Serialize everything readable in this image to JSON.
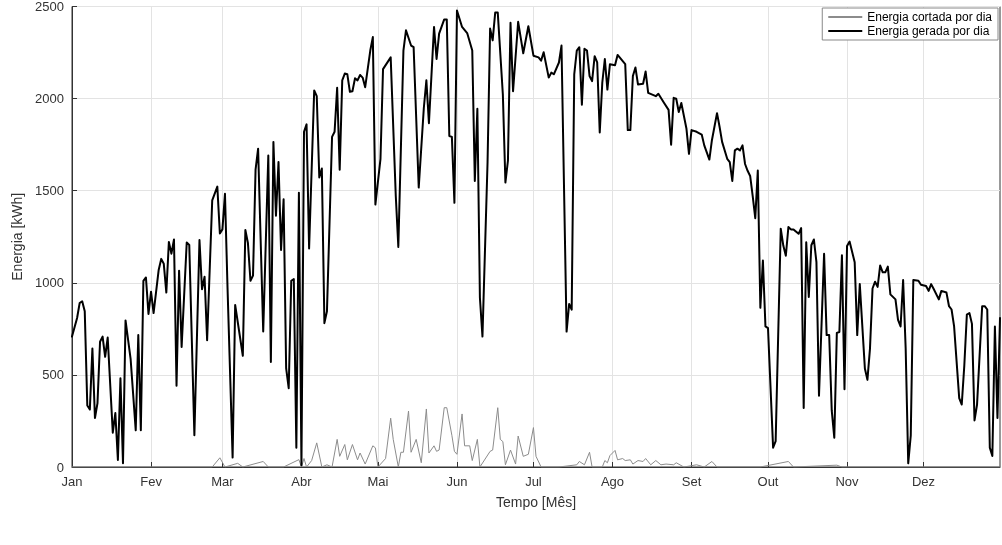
{
  "chart_data": {
    "type": "line",
    "xlabel": "Tempo [Mês]",
    "ylabel": "Energia [kWh]",
    "xlim": [
      "--01-01",
      "--12-31"
    ],
    "ylim": [
      0,
      2500
    ],
    "xticks": [
      {
        "value": "--01-01",
        "label": "Jan"
      },
      {
        "value": "--02-01",
        "label": "Fev"
      },
      {
        "value": "--03-01",
        "label": "Mar"
      },
      {
        "value": "--04-01",
        "label": "Abr"
      },
      {
        "value": "--05-01",
        "label": "Mai"
      },
      {
        "value": "--06-01",
        "label": "Jun"
      },
      {
        "value": "--07-01",
        "label": "Jul"
      },
      {
        "value": "--08-01",
        "label": "Ago"
      },
      {
        "value": "--09-01",
        "label": "Set"
      },
      {
        "value": "--10-01",
        "label": "Out"
      },
      {
        "value": "--11-01",
        "label": "Nov"
      },
      {
        "value": "--12-01",
        "label": "Dez"
      }
    ],
    "yticks": [
      0,
      500,
      1000,
      1500,
      2000,
      2500
    ],
    "grid": true,
    "legend": "top right",
    "marker": "none",
    "line_style": "solid",
    "series": [
      {
        "name": "Energia cortada por dia",
        "color": "#8c8c8c",
        "x": [
          "--01-01",
          "--02-25",
          "--02-28",
          "--03-02",
          "--03-07",
          "--03-09",
          "--03-17",
          "--03-19",
          "--03-25",
          "--03-31",
          "--04-01",
          "--04-02",
          "--04-03",
          "--04-05",
          "--04-07",
          "--04-09",
          "--04-11",
          "--04-13",
          "--04-15",
          "--04-16",
          "--04-18",
          "--04-19",
          "--04-21",
          "--04-23",
          "--04-24",
          "--04-26",
          "--04-29",
          "--04-30",
          "--05-01",
          "--05-04",
          "--05-06",
          "--05-07",
          "--05-09",
          "--05-10",
          "--05-11",
          "--05-13",
          "--05-14",
          "--05-16",
          "--05-18",
          "--05-20",
          "--05-21",
          "--05-23",
          "--05-24",
          "--05-25",
          "--05-27",
          "--05-28",
          "--05-30",
          "--05-31",
          "--06-01",
          "--06-03",
          "--06-04",
          "--06-06",
          "--06-07",
          "--06-09",
          "--06-10",
          "--06-14",
          "--06-15",
          "--06-17",
          "--06-18",
          "--06-19",
          "--06-20",
          "--06-22",
          "--06-24",
          "--06-25",
          "--06-27",
          "--06-29",
          "--07-01",
          "--07-02",
          "--07-04",
          "--07-09",
          "--07-11",
          "--07-18",
          "--07-19",
          "--07-21",
          "--07-23",
          "--07-24",
          "--07-28",
          "--07-29",
          "--07-30",
          "--07-31",
          "--08-02",
          "--08-03",
          "--08-05",
          "--08-06",
          "--08-08",
          "--08-09",
          "--08-11",
          "--08-13",
          "--08-14",
          "--08-16",
          "--08-18",
          "--08-20",
          "--08-22",
          "--08-25",
          "--08-26",
          "--08-29",
          "--09-03",
          "--09-06",
          "--09-09",
          "--09-11",
          "--09-15",
          "--09-28",
          "--10-09",
          "--10-11",
          "--10-28",
          "--10-30",
          "--12-31"
        ],
        "values": [
          0,
          0,
          50,
          0,
          20,
          0,
          30,
          0,
          0,
          40,
          0,
          46,
          0,
          35,
          131,
          0,
          12,
          0,
          150,
          58,
          122,
          39,
          122,
          39,
          76,
          16,
          115,
          104,
          0,
          46,
          265,
          150,
          0,
          80,
          80,
          304,
          80,
          150,
          23,
          315,
          76,
          115,
          85,
          92,
          322,
          322,
          172,
          85,
          69,
          288,
          115,
          115,
          35,
          150,
          0,
          85,
          92,
          322,
          150,
          138,
          12,
          92,
          16,
          168,
          58,
          69,
          214,
          58,
          0,
          0,
          0,
          12,
          30,
          12,
          80,
          0,
          0,
          35,
          23,
          62,
          90,
          39,
          46,
          35,
          39,
          16,
          35,
          30,
          46,
          12,
          35,
          12,
          16,
          12,
          23,
          0,
          12,
          0,
          30,
          0,
          0,
          0,
          30,
          0,
          10,
          0,
          0
        ]
      },
      {
        "name": "Energia gerada por dia",
        "color": "#000000",
        "x": [
          "--01-01",
          "--01-03",
          "--01-04",
          "--01-05",
          "--01-06",
          "--01-07",
          "--01-08",
          "--01-09",
          "--01-10",
          "--01-11",
          "--01-12",
          "--01-13",
          "--01-14",
          "--01-15",
          "--01-17",
          "--01-18",
          "--01-19",
          "--01-20",
          "--01-21",
          "--01-22",
          "--01-24",
          "--01-26",
          "--01-27",
          "--01-28",
          "--01-29",
          "--01-30",
          "--01-31",
          "--02-01",
          "--02-02",
          "--02-04",
          "--02-05",
          "--02-06",
          "--02-07",
          "--02-08",
          "--02-09",
          "--02-10",
          "--02-11",
          "--02-12",
          "--02-13",
          "--02-15",
          "--02-16",
          "--02-18",
          "--02-20",
          "--02-21",
          "--02-22",
          "--02-23",
          "--02-25",
          "--02-27",
          "--02-28",
          "--03-01",
          "--03-02",
          "--03-03",
          "--03-05",
          "--03-06",
          "--03-09",
          "--03-10",
          "--03-11",
          "--03-12",
          "--03-13",
          "--03-14",
          "--03-15",
          "--03-17",
          "--03-19",
          "--03-20",
          "--03-21",
          "--03-22",
          "--03-23",
          "--03-24",
          "--03-25",
          "--03-26",
          "--03-27",
          "--03-28",
          "--03-29",
          "--03-30",
          "--03-31",
          "--04-01",
          "--04-02",
          "--04-03",
          "--04-04",
          "--04-06",
          "--04-07",
          "--04-08",
          "--04-09",
          "--04-10",
          "--04-11",
          "--04-13",
          "--04-14",
          "--04-15",
          "--04-16",
          "--04-17",
          "--04-18",
          "--04-19",
          "--04-20",
          "--04-21",
          "--04-22",
          "--04-23",
          "--04-24",
          "--04-25",
          "--04-26",
          "--04-28",
          "--04-29",
          "--04-30",
          "--05-02",
          "--05-03",
          "--05-06",
          "--05-08",
          "--05-09",
          "--05-11",
          "--05-12",
          "--05-14",
          "--05-15",
          "--05-17",
          "--05-19",
          "--05-20",
          "--05-21",
          "--05-23",
          "--05-24",
          "--05-25",
          "--05-27",
          "--05-28",
          "--05-29",
          "--05-30",
          "--05-31",
          "--06-01",
          "--06-03",
          "--06-05",
          "--06-07",
          "--06-08",
          "--06-09",
          "--06-10",
          "--06-11",
          "--06-13",
          "--06-14",
          "--06-15",
          "--06-16",
          "--06-17",
          "--06-19",
          "--06-20",
          "--06-21",
          "--06-22",
          "--06-23",
          "--06-25",
          "--06-27",
          "--06-29",
          "--07-01",
          "--07-03",
          "--07-04",
          "--07-05",
          "--07-07",
          "--07-08",
          "--07-09",
          "--07-11",
          "--07-12",
          "--07-14",
          "--07-15",
          "--07-16",
          "--07-17",
          "--07-18",
          "--07-19",
          "--07-20",
          "--07-21",
          "--07-22",
          "--07-23",
          "--07-24",
          "--07-25",
          "--07-26",
          "--07-27",
          "--07-28",
          "--07-29",
          "--07-30",
          "--07-31",
          "--08-02",
          "--08-03",
          "--08-06",
          "--08-07",
          "--08-08",
          "--08-09",
          "--08-10",
          "--08-11",
          "--08-13",
          "--08-14",
          "--08-15",
          "--08-18",
          "--08-19",
          "--08-21",
          "--08-23",
          "--08-24",
          "--08-25",
          "--08-26",
          "--08-27",
          "--08-28",
          "--08-30",
          "--08-31",
          "--09-01",
          "--09-03",
          "--09-05",
          "--09-06",
          "--09-08",
          "--09-09",
          "--09-11",
          "--09-12",
          "--09-13",
          "--09-15",
          "--09-16",
          "--09-17",
          "--09-18",
          "--09-19",
          "--09-20",
          "--09-21",
          "--09-22",
          "--09-23",
          "--09-24",
          "--09-25",
          "--09-26",
          "--09-27",
          "--09-28",
          "--09-29",
          "--09-30",
          "--10-01",
          "--10-03",
          "--10-04",
          "--10-06",
          "--10-07",
          "--10-08",
          "--10-09",
          "--10-10",
          "--10-11",
          "--10-13",
          "--10-14",
          "--10-15",
          "--10-16",
          "--10-17",
          "--10-18",
          "--10-19",
          "--10-20",
          "--10-21",
          "--10-23",
          "--10-24",
          "--10-25",
          "--10-26",
          "--10-27",
          "--10-28",
          "--10-29",
          "--10-30",
          "--10-31",
          "--11-01",
          "--11-02",
          "--11-04",
          "--11-05",
          "--11-06",
          "--11-08",
          "--11-09",
          "--11-10",
          "--11-11",
          "--11-12",
          "--11-13",
          "--11-14",
          "--11-15",
          "--11-16",
          "--11-17",
          "--11-18",
          "--11-20",
          "--11-21",
          "--11-22",
          "--11-23",
          "--11-24",
          "--11-25",
          "--11-26",
          "--11-27",
          "--11-29",
          "--11-30",
          "--12-02",
          "--12-03",
          "--12-04",
          "--12-05",
          "--12-07",
          "--12-08",
          "--12-10",
          "--12-11",
          "--12-12",
          "--12-13",
          "--12-15",
          "--12-16",
          "--12-17",
          "--12-18",
          "--12-19",
          "--12-20",
          "--12-21",
          "--12-22",
          "--12-24",
          "--12-25",
          "--12-26",
          "--12-27",
          "--12-28",
          "--12-29",
          "--12-30",
          "--12-31"
        ],
        "values": [
          708,
          809,
          890,
          900,
          845,
          334,
          312,
          643,
          266,
          347,
          680,
          708,
          598,
          703,
          186,
          293,
          38,
          482,
          20,
          796,
          585,
          199,
          717,
          199,
          1011,
          1029,
          831,
          952,
          836,
          1070,
          1130,
          1103,
          947,
          1222,
          1158,
          1235,
          441,
          1066,
          652,
          1219,
          1205,
          172,
          1232,
          965,
          1033,
          688,
          1448,
          1522,
          1268,
          1290,
          1483,
          975,
          51,
          880,
          604,
          1287,
          1217,
          1011,
          1039,
          1614,
          1728,
          736,
          1691,
          570,
          1765,
          1364,
          1656,
          1178,
          1453,
          535,
          428,
          1011,
          1020,
          105,
          1489,
          10,
          1820,
          1860,
          1186,
          2044,
          2013,
          1572,
          1621,
          781,
          845,
          1792,
          1820,
          2059,
          1614,
          2099,
          2136,
          2132,
          2037,
          2040,
          2110,
          2099,
          2128,
          2114,
          2062,
          2261,
          2334,
          1425,
          1673,
          2160,
          2224,
          1471,
          1195,
          2261,
          2371,
          2288,
          2279,
          1517,
          1949,
          2099,
          1866,
          2389,
          2215,
          2353,
          2430,
          2430,
          1797,
          1792,
          1434,
          2478,
          2389,
          2356,
          2261,
          1553,
          1945,
          919,
          708,
          1656,
          2380,
          2316,
          2467,
          2467,
          2022,
          1544,
          1664,
          2412,
          2040,
          2417,
          2246,
          2393,
          2233,
          2224,
          2206,
          2252,
          2114,
          2141,
          2132,
          2196,
          2288,
          735,
          885,
          854,
          2132,
          2261,
          2279,
          1967,
          2270,
          2261,
          2123,
          2095,
          2230,
          2196,
          1816,
          2086,
          2215,
          2049,
          2187,
          2181,
          2237,
          2187,
          1829,
          1829,
          2123,
          2169,
          2077,
          2081,
          2147,
          2031,
          2013,
          2026,
          1982,
          1939,
          1750,
          2004,
          2000,
          1927,
          1976,
          1838,
          1700,
          1829,
          1820,
          1805,
          1746,
          1669,
          1774,
          1921,
          1847,
          1765,
          1673,
          1655,
          1553,
          1719,
          1728,
          1719,
          1746,
          1645,
          1608,
          1580,
          1471,
          1351,
          1609,
          864,
          1121,
          763,
          754,
          105,
          140,
          1294,
          1202,
          1147,
          1303,
          1290,
          1290,
          1266,
          1297,
          320,
          1220,
          923,
          1204,
          1235,
          1112,
          387,
          1158,
          716,
          716,
          307,
          159,
          728,
          733,
          1149,
          422,
          1200,
          1224,
          1112,
          716,
          993,
          535,
          473,
          643,
          969,
          1006,
          978,
          1094,
          1057,
          1057,
          1088,
          937,
          910,
          799,
          763,
          1015,
          643,
          20,
          172,
          1015,
          1011,
          989,
          983,
          956,
          993,
          966,
          910,
          956,
          947,
          873,
          855,
          763,
          374,
          339,
          551,
          827,
          836,
          777,
          253,
          339,
          873,
          873,
          855,
          105,
          60,
          763,
          266,
          809
        ]
      }
    ]
  }
}
